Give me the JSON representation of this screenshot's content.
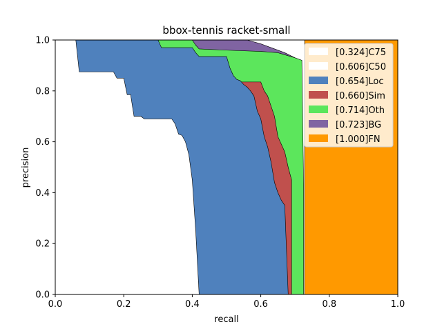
{
  "chart_data": {
    "type": "area",
    "title": "bbox-tennis racket-small",
    "xlabel": "recall",
    "ylabel": "precision",
    "xlim": [
      0,
      1
    ],
    "ylim": [
      0,
      1
    ],
    "x_ticks": [
      "0.0",
      "0.2",
      "0.4",
      "0.6",
      "0.8",
      "1.0"
    ],
    "y_ticks": [
      "0.0",
      "0.2",
      "0.4",
      "0.6",
      "0.8",
      "1.0"
    ],
    "grid": false,
    "legend_position": "top-right",
    "series": [
      {
        "name": "[0.324]C75",
        "color": "#ffffff",
        "points": [
          [
            0.06,
            1.0
          ],
          [
            0.07,
            0.875
          ],
          [
            0.17,
            0.875
          ],
          [
            0.18,
            0.85
          ],
          [
            0.2,
            0.85
          ],
          [
            0.21,
            0.785
          ],
          [
            0.22,
            0.785
          ],
          [
            0.23,
            0.7
          ],
          [
            0.25,
            0.7
          ],
          [
            0.26,
            0.69
          ],
          [
            0.34,
            0.69
          ],
          [
            0.35,
            0.67
          ],
          [
            0.36,
            0.63
          ],
          [
            0.37,
            0.625
          ],
          [
            0.38,
            0.6
          ],
          [
            0.39,
            0.55
          ],
          [
            0.4,
            0.45
          ],
          [
            0.41,
            0.25
          ],
          [
            0.42,
            0.0
          ]
        ]
      },
      {
        "name": "[0.606]C50",
        "color": "#ffffff",
        "points": []
      },
      {
        "name": "[0.654]Loc",
        "color": "#4f81bd",
        "points": [
          [
            0.3,
            1.0
          ],
          [
            0.31,
            0.97
          ],
          [
            0.4,
            0.97
          ],
          [
            0.41,
            0.95
          ],
          [
            0.42,
            0.935
          ],
          [
            0.5,
            0.935
          ],
          [
            0.51,
            0.89
          ],
          [
            0.52,
            0.86
          ],
          [
            0.53,
            0.845
          ],
          [
            0.54,
            0.84
          ],
          [
            0.55,
            0.825
          ],
          [
            0.56,
            0.815
          ],
          [
            0.57,
            0.8
          ],
          [
            0.58,
            0.78
          ],
          [
            0.59,
            0.72
          ],
          [
            0.6,
            0.69
          ],
          [
            0.61,
            0.62
          ],
          [
            0.62,
            0.58
          ],
          [
            0.63,
            0.52
          ],
          [
            0.64,
            0.44
          ],
          [
            0.65,
            0.4
          ],
          [
            0.66,
            0.37
          ],
          [
            0.67,
            0.35
          ],
          [
            0.68,
            0.0
          ]
        ]
      },
      {
        "name": "[0.660]Sim",
        "color": "#c0504d",
        "points": [
          [
            0.6,
            0.835
          ],
          [
            0.61,
            0.8
          ],
          [
            0.62,
            0.78
          ],
          [
            0.63,
            0.74
          ],
          [
            0.64,
            0.7
          ],
          [
            0.65,
            0.62
          ],
          [
            0.66,
            0.59
          ],
          [
            0.67,
            0.56
          ],
          [
            0.68,
            0.5
          ],
          [
            0.69,
            0.45
          ]
        ]
      },
      {
        "name": "[0.714]Oth",
        "color": "#5ce65c",
        "points": [
          [
            0.32,
            1.0
          ],
          [
            0.4,
            1.0
          ],
          [
            0.41,
            0.98
          ],
          [
            0.42,
            0.965
          ],
          [
            0.5,
            0.96
          ],
          [
            0.6,
            0.955
          ],
          [
            0.65,
            0.95
          ],
          [
            0.7,
            0.93
          ],
          [
            0.72,
            0.92
          ],
          [
            0.725,
            0.43
          ]
        ]
      },
      {
        "name": "[0.723]BG",
        "color": "#8064a2",
        "points": [
          [
            0.56,
            1.0
          ],
          [
            0.6,
            0.985
          ],
          [
            0.63,
            0.97
          ],
          [
            0.67,
            0.95
          ],
          [
            0.7,
            0.93
          ],
          [
            0.71,
            0.9
          ],
          [
            0.72,
            0.89
          ]
        ]
      },
      {
        "name": "[1.000]FN",
        "color": "#ff9900",
        "points": [
          [
            0.728,
            1.0
          ],
          [
            1.0,
            1.0
          ],
          [
            1.0,
            0.0
          ],
          [
            0.728,
            0.0
          ]
        ]
      }
    ]
  }
}
